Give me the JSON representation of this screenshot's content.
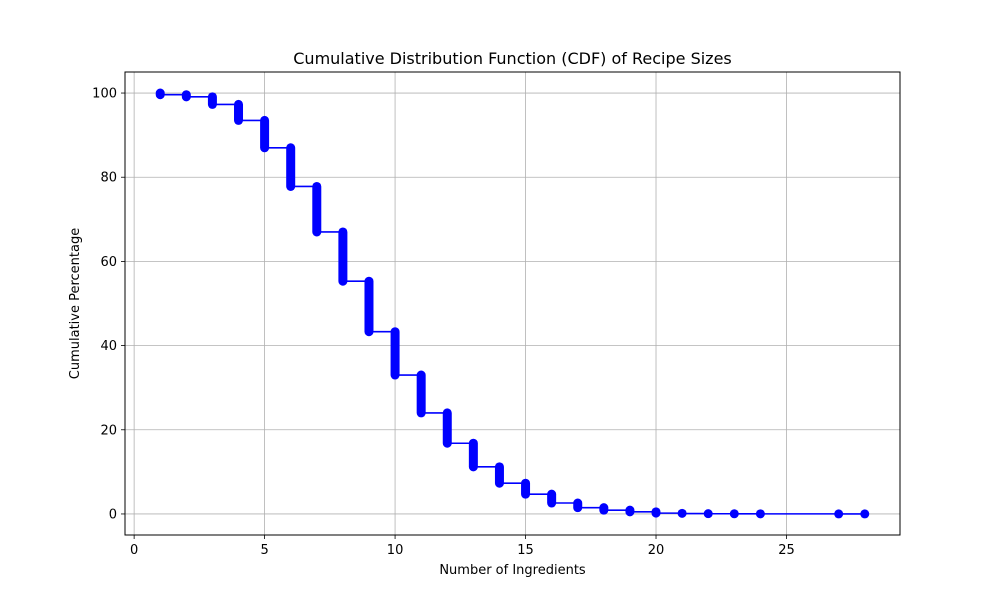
{
  "chart_data": {
    "type": "line",
    "title": "Cumulative Distribution Function (CDF) of Recipe Sizes",
    "xlabel": "Number of Ingredients",
    "ylabel": "Cumulative Percentage",
    "xlim": [
      -0.35,
      29.35
    ],
    "ylim": [
      -5,
      105
    ],
    "x_ticks": [
      0,
      5,
      10,
      15,
      20,
      25
    ],
    "y_ticks": [
      0,
      20,
      40,
      60,
      80,
      100
    ],
    "grid": true,
    "line_color": "#0000ff",
    "marker": "circle",
    "series": [
      {
        "steps": [
          {
            "x": 1,
            "y_top": 100.0,
            "y_bottom": 99.6
          },
          {
            "x": 2,
            "y_top": 99.6,
            "y_bottom": 99.1
          },
          {
            "x": 3,
            "y_top": 99.1,
            "y_bottom": 97.3
          },
          {
            "x": 4,
            "y_top": 97.3,
            "y_bottom": 93.5
          },
          {
            "x": 5,
            "y_top": 93.5,
            "y_bottom": 87.0
          },
          {
            "x": 6,
            "y_top": 87.0,
            "y_bottom": 77.8
          },
          {
            "x": 7,
            "y_top": 77.8,
            "y_bottom": 67.0
          },
          {
            "x": 8,
            "y_top": 67.0,
            "y_bottom": 55.3
          },
          {
            "x": 9,
            "y_top": 55.3,
            "y_bottom": 43.3
          },
          {
            "x": 10,
            "y_top": 43.3,
            "y_bottom": 33.0
          },
          {
            "x": 11,
            "y_top": 33.0,
            "y_bottom": 24.0
          },
          {
            "x": 12,
            "y_top": 24.0,
            "y_bottom": 16.8
          },
          {
            "x": 13,
            "y_top": 16.8,
            "y_bottom": 11.2
          },
          {
            "x": 14,
            "y_top": 11.2,
            "y_bottom": 7.3
          },
          {
            "x": 15,
            "y_top": 7.3,
            "y_bottom": 4.7
          },
          {
            "x": 16,
            "y_top": 4.7,
            "y_bottom": 2.6
          },
          {
            "x": 17,
            "y_top": 2.6,
            "y_bottom": 1.5
          },
          {
            "x": 18,
            "y_top": 1.5,
            "y_bottom": 0.9
          },
          {
            "x": 19,
            "y_top": 0.9,
            "y_bottom": 0.5
          },
          {
            "x": 20,
            "y_top": 0.5,
            "y_bottom": 0.2
          },
          {
            "x": 21,
            "y_top": 0.2,
            "y_bottom": 0.1
          },
          {
            "x": 22,
            "y_top": 0.1,
            "y_bottom": 0.05
          },
          {
            "x": 23,
            "y_top": 0.05,
            "y_bottom": 0.03
          },
          {
            "x": 24,
            "y_top": 0.03,
            "y_bottom": 0.02
          },
          {
            "x": 27,
            "y_top": 0.02,
            "y_bottom": 0.01
          },
          {
            "x": 28,
            "y_top": 0.01,
            "y_bottom": 0.0
          }
        ]
      }
    ]
  }
}
